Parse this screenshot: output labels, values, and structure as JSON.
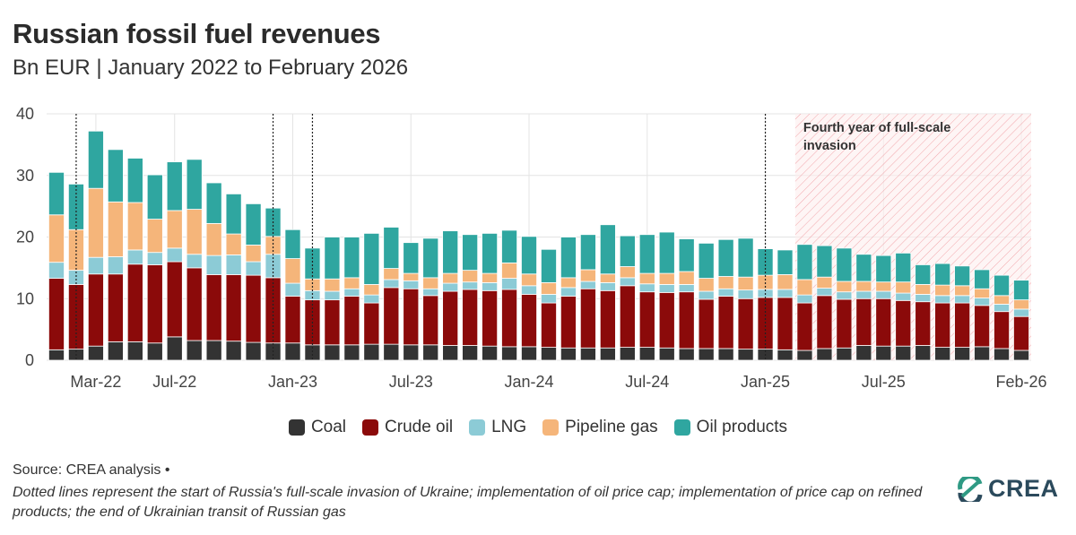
{
  "title": "Russian fossil fuel revenues",
  "subtitle": "Bn EUR | January 2022 to February 2026",
  "source": "Source: CREA analysis •",
  "note": "Dotted lines represent the start of Russia's full-scale invasion of Ukraine; implementation of oil price cap; implementation of price cap on refined products; the end of Ukrainian transit of Russian gas",
  "logo_text": "CREA",
  "colors": {
    "Coal": "#333333",
    "Crude oil": "#8b0a0a",
    "LNG": "#8ccbd6",
    "Pipeline gas": "#f5b57a",
    "Oil products": "#2fa6a0",
    "shade": "#e8666f"
  },
  "chart_data": {
    "type": "bar",
    "stacked": true,
    "title": "Russian fossil fuel revenues",
    "subtitle": "Bn EUR | January 2022 to February 2026",
    "ylim": [
      0,
      40
    ],
    "yticks": [
      0,
      10,
      20,
      30,
      40
    ],
    "grid": true,
    "legend_placement": "bottom",
    "x_tick_labels": [
      {
        "index": 2,
        "label": "Mar-22"
      },
      {
        "index": 6,
        "label": "Jul-22"
      },
      {
        "index": 12,
        "label": "Jan-23"
      },
      {
        "index": 18,
        "label": "Jul-23"
      },
      {
        "index": 24,
        "label": "Jan-24"
      },
      {
        "index": 30,
        "label": "Jul-24"
      },
      {
        "index": 36,
        "label": "Jan-25"
      },
      {
        "index": 42,
        "label": "Jul-25"
      },
      {
        "index": 49,
        "label": "Feb-26"
      }
    ],
    "categories": [
      "Jan-22",
      "Feb-22",
      "Mar-22",
      "Apr-22",
      "May-22",
      "Jun-22",
      "Jul-22",
      "Aug-22",
      "Sep-22",
      "Oct-22",
      "Nov-22",
      "Dec-22",
      "Jan-23",
      "Feb-23",
      "Mar-23",
      "Apr-23",
      "May-23",
      "Jun-23",
      "Jul-23",
      "Aug-23",
      "Sep-23",
      "Oct-23",
      "Nov-23",
      "Dec-23",
      "Jan-24",
      "Feb-24",
      "Mar-24",
      "Apr-24",
      "May-24",
      "Jun-24",
      "Jul-24",
      "Aug-24",
      "Sep-24",
      "Oct-24",
      "Nov-24",
      "Dec-24",
      "Jan-25",
      "Feb-25",
      "Mar-25",
      "Apr-25",
      "May-25",
      "Jun-25",
      "Jul-25",
      "Aug-25",
      "Sep-25",
      "Oct-25",
      "Nov-25",
      "Dec-25",
      "Jan-26",
      "Feb-26"
    ],
    "series": [
      {
        "name": "Coal",
        "values": [
          1.7,
          1.8,
          2.3,
          3.0,
          3.0,
          2.8,
          3.8,
          3.2,
          3.2,
          3.1,
          2.9,
          2.8,
          2.8,
          2.5,
          2.5,
          2.5,
          2.6,
          2.6,
          2.5,
          2.5,
          2.4,
          2.4,
          2.3,
          2.2,
          2.2,
          2.1,
          2.0,
          2.0,
          2.0,
          2.1,
          2.1,
          2.0,
          1.9,
          1.9,
          1.9,
          1.8,
          1.8,
          1.7,
          1.6,
          1.9,
          2.0,
          2.4,
          2.3,
          2.3,
          2.4,
          2.1,
          2.1,
          2.2,
          1.9,
          1.6
        ]
      },
      {
        "name": "Crude oil",
        "values": [
          11.6,
          10.5,
          11.7,
          11.0,
          12.6,
          12.7,
          12.2,
          11.8,
          10.7,
          10.8,
          10.9,
          10.6,
          7.6,
          7.3,
          7.3,
          7.9,
          6.7,
          9.2,
          9.1,
          8.0,
          8.8,
          9.1,
          9.0,
          9.3,
          8.5,
          7.2,
          8.4,
          9.6,
          9.3,
          10.0,
          9.0,
          9.0,
          9.2,
          8.0,
          8.5,
          8.2,
          8.4,
          8.5,
          7.7,
          8.6,
          7.9,
          7.6,
          7.7,
          7.4,
          7.1,
          7.2,
          7.2,
          6.7,
          6.0,
          5.5
        ]
      },
      {
        "name": "LNG",
        "values": [
          2.6,
          2.3,
          2.7,
          2.8,
          2.3,
          2.0,
          2.2,
          2.2,
          3.1,
          3.2,
          2.2,
          3.8,
          2.1,
          1.5,
          1.4,
          1.2,
          1.3,
          1.3,
          1.3,
          1.1,
          1.3,
          1.2,
          1.3,
          1.8,
          1.4,
          1.4,
          1.4,
          1.2,
          1.3,
          1.3,
          1.3,
          1.3,
          1.2,
          1.3,
          1.2,
          1.4,
          1.3,
          1.3,
          1.3,
          1.2,
          1.2,
          1.2,
          1.2,
          1.2,
          1.2,
          1.2,
          1.2,
          1.2,
          1.2,
          1.2
        ]
      },
      {
        "name": "Pipeline gas",
        "values": [
          7.7,
          6.6,
          11.2,
          8.9,
          7.7,
          5.4,
          6.1,
          7.3,
          5.2,
          3.4,
          2.7,
          2.9,
          4.0,
          1.9,
          2.0,
          1.8,
          1.7,
          1.8,
          1.2,
          1.8,
          1.6,
          1.9,
          1.5,
          2.5,
          1.9,
          1.9,
          1.6,
          1.9,
          1.4,
          1.8,
          1.7,
          1.8,
          2.1,
          2.1,
          2.0,
          2.1,
          2.3,
          2.4,
          2.5,
          1.8,
          1.7,
          1.6,
          1.5,
          1.8,
          1.6,
          1.7,
          1.6,
          1.5,
          1.4,
          1.5
        ]
      },
      {
        "name": "Oil products",
        "values": [
          6.9,
          7.4,
          9.3,
          8.5,
          7.2,
          7.2,
          7.9,
          8.1,
          6.6,
          6.5,
          6.7,
          4.6,
          4.7,
          5.0,
          6.8,
          6.6,
          8.3,
          6.7,
          5.0,
          6.4,
          6.9,
          5.8,
          6.5,
          5.3,
          6.1,
          5.4,
          6.6,
          5.7,
          8.0,
          5.0,
          6.3,
          6.7,
          5.3,
          5.7,
          6.0,
          6.3,
          4.3,
          4.0,
          5.7,
          5.1,
          5.4,
          4.4,
          4.3,
          4.7,
          3.2,
          3.5,
          3.2,
          3.1,
          3.3,
          3.2
        ]
      }
    ],
    "event_lines": [
      {
        "index": 1,
        "label": "Start of Russia's full-scale invasion of Ukraine"
      },
      {
        "index": 11,
        "label": "Implementation of oil price cap"
      },
      {
        "index": 13,
        "label": "Implementation of price cap on refined products"
      },
      {
        "index": 36,
        "label": "End of Ukrainian transit of Russian gas"
      }
    ],
    "shaded_region": {
      "start_index": 38,
      "end_index": 49,
      "label": "Fourth year of full-scale invasion"
    }
  }
}
